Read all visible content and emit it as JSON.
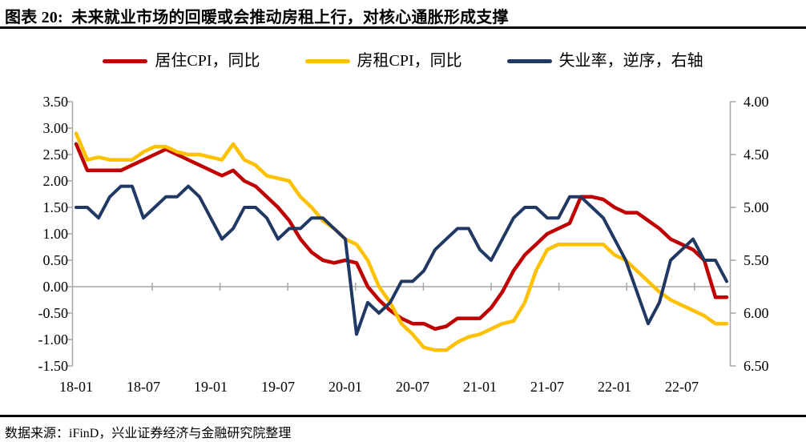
{
  "page": {
    "title": "图表 20:  未来就业市场的回暖或会推动房租上行，对核心通胀形成支撑",
    "source": "数据来源：iFinD，兴业证券经济与金融研究院整理"
  },
  "colors": {
    "residence_cpi": "#C00000",
    "rent_cpi": "#FFC000",
    "unemployment": "#1F3864",
    "axis": "#A6A6A6",
    "rule": "#000000"
  },
  "legend": [
    {
      "label": "居住CPI，同比",
      "color": "#C00000"
    },
    {
      "label": "房租CPI，同比",
      "color": "#FFC000"
    },
    {
      "label": "失业率，逆序，右轴",
      "color": "#1F3864"
    }
  ],
  "chart_data": {
    "type": "line",
    "title": "未来就业市场的回暖或会推动房租上行，对核心通胀形成支撑",
    "x": [
      "18-01",
      "18-02",
      "18-03",
      "18-04",
      "18-05",
      "18-06",
      "18-07",
      "18-08",
      "18-09",
      "18-10",
      "18-11",
      "18-12",
      "19-01",
      "19-02",
      "19-03",
      "19-04",
      "19-05",
      "19-06",
      "19-07",
      "19-08",
      "19-09",
      "19-10",
      "19-11",
      "19-12",
      "20-01",
      "20-02",
      "20-03",
      "20-04",
      "20-05",
      "20-06",
      "20-07",
      "20-08",
      "20-09",
      "20-10",
      "20-11",
      "20-12",
      "21-01",
      "21-02",
      "21-03",
      "21-04",
      "21-05",
      "21-06",
      "21-07",
      "21-08",
      "21-09",
      "21-10",
      "21-11",
      "21-12",
      "22-01",
      "22-02",
      "22-03",
      "22-04",
      "22-05",
      "22-06",
      "22-07",
      "22-08",
      "22-09",
      "22-10",
      "22-11"
    ],
    "x_axis_shown_labels": [
      "18-01",
      "18-07",
      "19-01",
      "19-07",
      "20-01",
      "20-07",
      "21-01",
      "21-07",
      "22-01",
      "22-07"
    ],
    "left_axis": {
      "min": -1.5,
      "max": 3.5,
      "step": 0.5,
      "tick_labels": [
        "3.50",
        "3.00",
        "2.50",
        "2.00",
        "1.50",
        "1.00",
        "0.50",
        "0.00",
        "-0.50",
        "-1.00",
        "-1.50"
      ]
    },
    "right_axis": {
      "min": 4.0,
      "max": 6.5,
      "step": 0.5,
      "reversed": true,
      "tick_labels": [
        "4.00",
        "4.50",
        "5.00",
        "5.50",
        "6.00",
        "6.50"
      ]
    },
    "grid": "zero-line-only",
    "legend_position": "top",
    "series": [
      {
        "name": "居住CPI，同比",
        "axis": "left",
        "color": "#C00000",
        "values": [
          2.7,
          2.2,
          2.2,
          2.2,
          2.2,
          2.3,
          2.4,
          2.5,
          2.6,
          2.5,
          2.4,
          2.3,
          2.2,
          2.1,
          2.2,
          2.0,
          1.9,
          1.7,
          1.5,
          1.25,
          0.9,
          0.65,
          0.5,
          0.45,
          0.5,
          0.45,
          0.0,
          -0.25,
          -0.45,
          -0.6,
          -0.7,
          -0.7,
          -0.8,
          -0.75,
          -0.6,
          -0.6,
          -0.6,
          -0.4,
          -0.1,
          0.3,
          0.6,
          0.8,
          1.0,
          1.1,
          1.2,
          1.7,
          1.7,
          1.65,
          1.5,
          1.4,
          1.4,
          1.25,
          1.1,
          0.9,
          0.8,
          0.7,
          0.5,
          -0.2,
          -0.2
        ]
      },
      {
        "name": "房租CPI，同比",
        "axis": "left",
        "color": "#FFC000",
        "values": [
          2.9,
          2.4,
          2.45,
          2.4,
          2.4,
          2.4,
          2.55,
          2.65,
          2.65,
          2.55,
          2.5,
          2.5,
          2.45,
          2.4,
          2.7,
          2.4,
          2.3,
          2.1,
          2.05,
          2.0,
          1.7,
          1.5,
          1.25,
          1.1,
          0.9,
          0.8,
          0.5,
          0.0,
          -0.3,
          -0.7,
          -0.9,
          -1.15,
          -1.2,
          -1.2,
          -1.05,
          -0.95,
          -0.9,
          -0.8,
          -0.7,
          -0.65,
          -0.3,
          0.3,
          0.7,
          0.8,
          0.8,
          0.8,
          0.8,
          0.8,
          0.6,
          0.5,
          0.3,
          0.1,
          -0.1,
          -0.25,
          -0.35,
          -0.45,
          -0.55,
          -0.7,
          -0.7
        ]
      },
      {
        "name": "失业率，逆序，右轴",
        "axis": "right",
        "color": "#1F3864",
        "values": [
          5.0,
          5.0,
          5.1,
          4.9,
          4.8,
          4.8,
          5.1,
          5.0,
          4.9,
          4.9,
          4.8,
          4.9,
          5.1,
          5.3,
          5.2,
          5.0,
          5.0,
          5.1,
          5.3,
          5.2,
          5.2,
          5.1,
          5.1,
          5.2,
          5.3,
          6.2,
          5.9,
          6.0,
          5.9,
          5.7,
          5.7,
          5.6,
          5.4,
          5.3,
          5.2,
          5.2,
          5.4,
          5.5,
          5.3,
          5.1,
          5.0,
          5.0,
          5.1,
          5.1,
          4.9,
          4.9,
          5.0,
          5.1,
          5.3,
          5.5,
          5.8,
          6.1,
          5.9,
          5.5,
          5.4,
          5.3,
          5.5,
          5.5,
          5.7
        ]
      }
    ]
  }
}
